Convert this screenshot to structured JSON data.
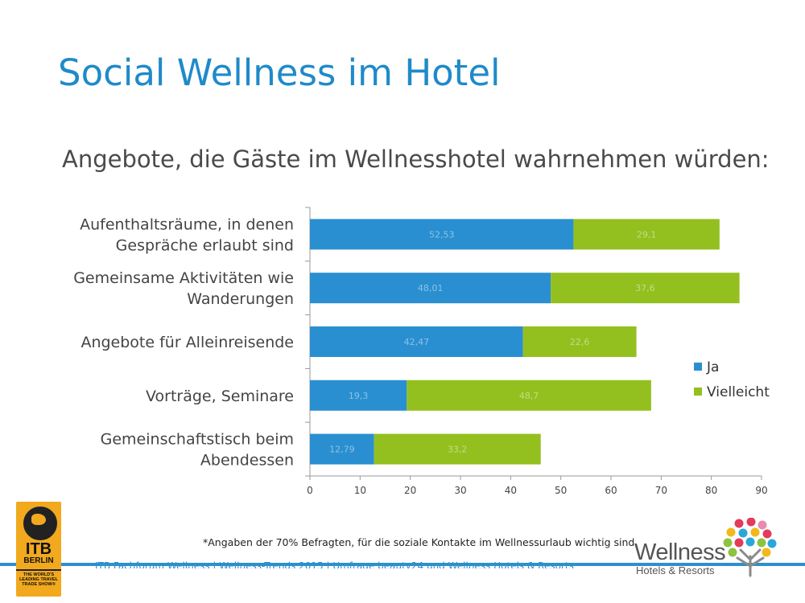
{
  "title": "Social Wellness im Hotel",
  "subtitle": "Angebote, die Gäste im Wellnesshotel wahrnehmen würden:",
  "footnote": "*Angaben der 70% Befragten, für die soziale Kontakte im Wellnessurlaub wichtig sind",
  "footer_text": "ITB Fachforum Wellness  |  Wellness-Trends 2015  |  Umfrage beauty24 und Wellness Hotels & Resorts",
  "logos": {
    "itb": {
      "line1": "ITB",
      "line2": "BERLIN",
      "tagline": "THE WORLD'S LEADING TRAVEL TRADE SHOW®"
    },
    "wellness": {
      "word": "Wellness",
      "sub": "Hotels & Resorts"
    }
  },
  "colors": {
    "ja": "#2a8fd0",
    "vielleicht": "#93c01f",
    "title": "#1f8ac9"
  },
  "chart_data": {
    "type": "bar",
    "orientation": "horizontal",
    "stacked": true,
    "categories": [
      [
        "Aufenthaltsräume, in denen",
        "Gespräche erlaubt sind"
      ],
      [
        "Gemeinsame Aktivitäten wie",
        "Wanderungen"
      ],
      [
        "Angebote für Alleinreisende"
      ],
      [
        "Vorträge, Seminare"
      ],
      [
        "Gemeinschaftstisch beim",
        "Abendessen"
      ]
    ],
    "series": [
      {
        "name": "Ja",
        "values": [
          52.53,
          48.01,
          42.47,
          19.3,
          12.79
        ],
        "labels": [
          "52,53",
          "48,01",
          "42,47",
          "19,3",
          "12,79"
        ]
      },
      {
        "name": "Vielleicht",
        "values": [
          29.1,
          37.6,
          22.6,
          48.7,
          33.2
        ],
        "labels": [
          "29,1",
          "37,6",
          "22,6",
          "48,7",
          "33,2"
        ]
      }
    ],
    "xlim": [
      0,
      90
    ],
    "xticks": [
      0,
      10,
      20,
      30,
      40,
      50,
      60,
      70,
      80,
      90
    ],
    "legend": "right",
    "grid": false
  }
}
